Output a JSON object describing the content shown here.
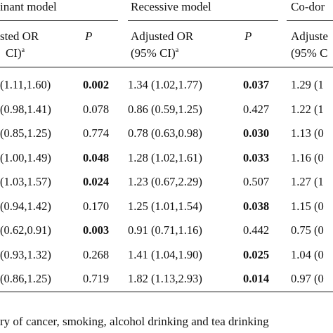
{
  "headers": {
    "dominant": "inant model",
    "recessive": "Recessive model",
    "codominant": "Co-dor"
  },
  "subheaders": {
    "dom_or_line1": "sted OR",
    "dom_or_line2": "CI)",
    "dom_or_sup": "a",
    "p": "P",
    "rec_or_line1": "Adjusted OR",
    "rec_or_line2": "(95% CI)",
    "rec_or_sup": "a",
    "rec_p": "P",
    "co_or_line1": "Adjuste",
    "co_or_line2": "(95% C"
  },
  "rows": [
    {
      "dom_ci": "(1.11,1.60)",
      "dom_p": "0.002",
      "dom_p_bold": true,
      "rec_or": "1.34 (1.02,1.77)",
      "rec_p": "0.037",
      "rec_p_bold": true,
      "co": "1.29 (1"
    },
    {
      "dom_ci": "(0.98,1.41)",
      "dom_p": "0.078",
      "dom_p_bold": false,
      "rec_or": "0.86 (0.59,1.25)",
      "rec_p": "0.427",
      "rec_p_bold": false,
      "co": "1.22 (1"
    },
    {
      "dom_ci": "(0.85,1.25)",
      "dom_p": "0.774",
      "dom_p_bold": false,
      "rec_or": "0.78 (0.63,0.98)",
      "rec_p": "0.030",
      "rec_p_bold": true,
      "co": "1.13 (0"
    },
    {
      "dom_ci": "(1.00,1.49)",
      "dom_p": "0.048",
      "dom_p_bold": true,
      "rec_or": "1.28 (1.02,1.61)",
      "rec_p": "0.033",
      "rec_p_bold": true,
      "co": "1.16 (0"
    },
    {
      "dom_ci": "(1.03,1.57)",
      "dom_p": "0.024",
      "dom_p_bold": true,
      "rec_or": "1.23 (0.67,2.29)",
      "rec_p": "0.507",
      "rec_p_bold": false,
      "co": "1.27 (1"
    },
    {
      "dom_ci": "(0.94,1.42)",
      "dom_p": "0.170",
      "dom_p_bold": false,
      "rec_or": "1.25 (1.01,1.54)",
      "rec_p": "0.038",
      "rec_p_bold": true,
      "co": "1.15 (0"
    },
    {
      "dom_ci": "(0.62,0.91)",
      "dom_p": "0.003",
      "dom_p_bold": true,
      "rec_or": "0.91 (0.71,1.16)",
      "rec_p": "0.442",
      "rec_p_bold": false,
      "co": "0.75 (0"
    },
    {
      "dom_ci": "(0.93,1.32)",
      "dom_p": "0.268",
      "dom_p_bold": false,
      "rec_or": "1.41 (1.04,1.90)",
      "rec_p": "0.025",
      "rec_p_bold": true,
      "co": "1.04 (0"
    },
    {
      "dom_ci": "(0.86,1.25)",
      "dom_p": "0.719",
      "dom_p_bold": false,
      "rec_or": "1.82 (1.13,2.93)",
      "rec_p": "0.014",
      "rec_p_bold": true,
      "co": "0.97 (0"
    }
  ],
  "footnote": "ry of cancer, smoking, alcohol drinking and tea drinking"
}
